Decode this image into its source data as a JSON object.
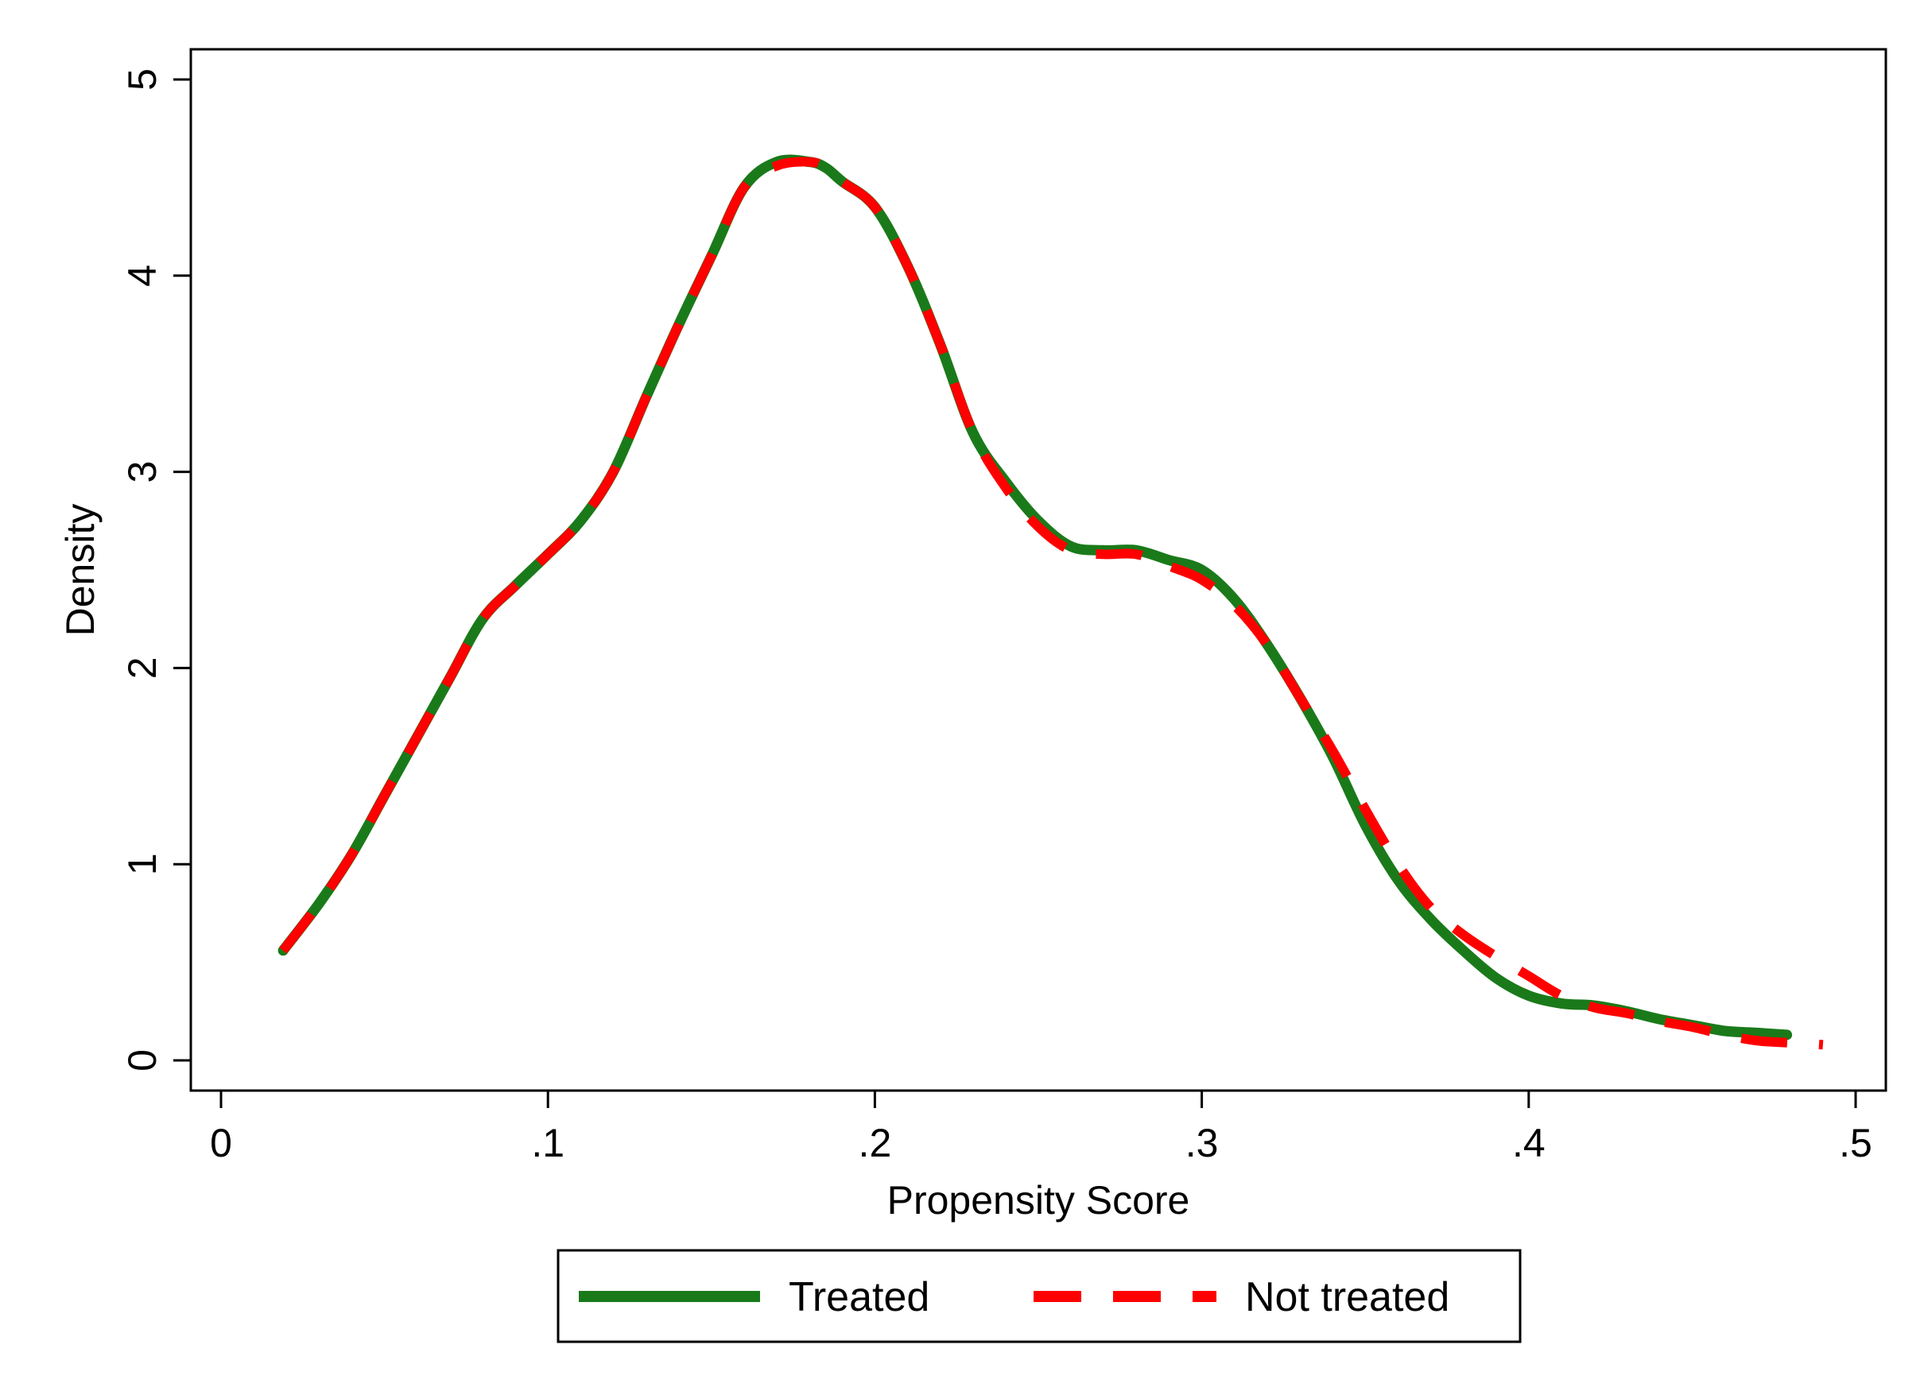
{
  "chart_data": {
    "type": "line",
    "xlabel": "Propensity Score",
    "ylabel": "Density",
    "xlim": [
      0,
      0.5
    ],
    "ylim": [
      0,
      5
    ],
    "x_ticks": [
      0,
      0.1,
      0.2,
      0.3,
      0.4,
      0.5
    ],
    "x_tick_labels": [
      "0",
      ".1",
      ".2",
      ".3",
      ".4",
      ".5"
    ],
    "y_ticks": [
      0,
      1,
      2,
      3,
      4,
      5
    ],
    "y_tick_labels": [
      "0",
      "1",
      "2",
      "3",
      "4",
      "5"
    ],
    "grid": false,
    "legend_position": "bottom",
    "series": [
      {
        "name": "Treated",
        "color": "#1a7a1a",
        "style": "solid",
        "x": [
          0.019,
          0.03,
          0.04,
          0.05,
          0.06,
          0.07,
          0.08,
          0.09,
          0.1,
          0.11,
          0.12,
          0.13,
          0.14,
          0.15,
          0.16,
          0.17,
          0.18,
          0.185,
          0.19,
          0.2,
          0.21,
          0.22,
          0.23,
          0.24,
          0.25,
          0.26,
          0.27,
          0.28,
          0.29,
          0.3,
          0.31,
          0.32,
          0.33,
          0.34,
          0.35,
          0.36,
          0.37,
          0.38,
          0.39,
          0.4,
          0.41,
          0.42,
          0.43,
          0.44,
          0.45,
          0.46,
          0.47,
          0.479
        ],
        "y": [
          0.56,
          0.8,
          1.05,
          1.35,
          1.65,
          1.95,
          2.25,
          2.42,
          2.58,
          2.75,
          3.0,
          3.38,
          3.75,
          4.1,
          4.45,
          4.58,
          4.58,
          4.55,
          4.48,
          4.35,
          4.05,
          3.65,
          3.2,
          2.95,
          2.75,
          2.62,
          2.6,
          2.6,
          2.55,
          2.5,
          2.35,
          2.12,
          1.85,
          1.55,
          1.2,
          0.92,
          0.72,
          0.56,
          0.42,
          0.33,
          0.29,
          0.28,
          0.25,
          0.21,
          0.18,
          0.15,
          0.14,
          0.13
        ]
      },
      {
        "name": "Not treated",
        "color": "#ff0000",
        "style": "dashed",
        "x": [
          0.019,
          0.03,
          0.04,
          0.05,
          0.06,
          0.07,
          0.08,
          0.09,
          0.1,
          0.11,
          0.12,
          0.13,
          0.14,
          0.15,
          0.16,
          0.17,
          0.18,
          0.185,
          0.19,
          0.2,
          0.21,
          0.22,
          0.23,
          0.24,
          0.25,
          0.26,
          0.27,
          0.28,
          0.29,
          0.3,
          0.31,
          0.32,
          0.33,
          0.34,
          0.35,
          0.36,
          0.37,
          0.38,
          0.39,
          0.4,
          0.41,
          0.42,
          0.43,
          0.44,
          0.45,
          0.46,
          0.47,
          0.48,
          0.49
        ],
        "y": [
          0.56,
          0.8,
          1.05,
          1.35,
          1.65,
          1.95,
          2.25,
          2.42,
          2.58,
          2.75,
          3.0,
          3.38,
          3.75,
          4.1,
          4.45,
          4.56,
          4.58,
          4.55,
          4.48,
          4.35,
          4.05,
          3.65,
          3.2,
          2.92,
          2.72,
          2.6,
          2.58,
          2.58,
          2.52,
          2.45,
          2.32,
          2.12,
          1.85,
          1.58,
          1.28,
          1.0,
          0.78,
          0.64,
          0.53,
          0.43,
          0.33,
          0.27,
          0.24,
          0.2,
          0.17,
          0.13,
          0.1,
          0.09,
          0.08
        ]
      }
    ]
  }
}
